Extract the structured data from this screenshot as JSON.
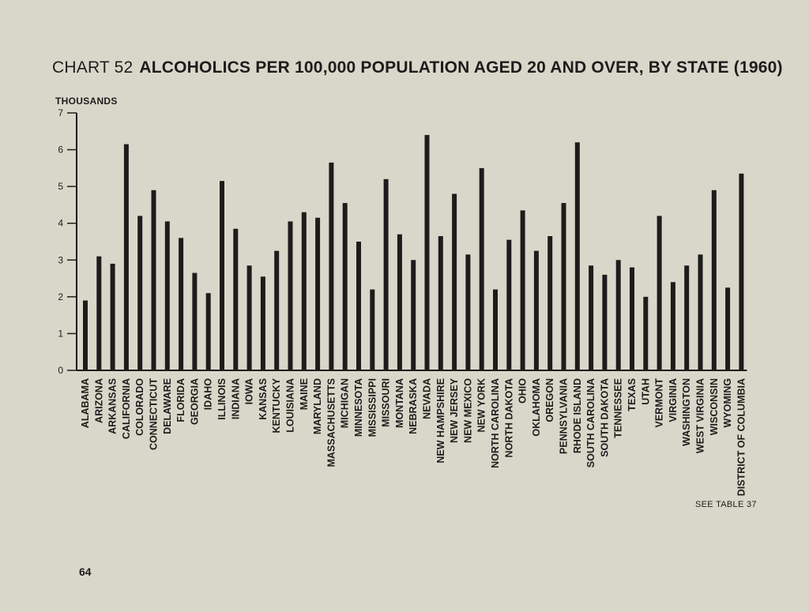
{
  "title_prefix": "CHART 52",
  "title": "ALCOHOLICS PER 100,000 POPULATION AGED 20 AND OVER, BY STATE (1960)",
  "source_note": "SEE TABLE 37",
  "page_number": "64",
  "chart_data": {
    "type": "bar",
    "title": "ALCOHOLICS PER 100,000 POPULATION AGED 20 AND OVER, BY STATE (1960)",
    "ylabel": "THOUSANDS",
    "xlabel": "",
    "ylim": [
      0,
      7
    ],
    "yticks": [
      0,
      1,
      2,
      3,
      4,
      5,
      6,
      7
    ],
    "grid": false,
    "bar_color": "#1c1c1c",
    "categories": [
      "ALABAMA",
      "ARIZONA",
      "ARKANSAS",
      "CALIFORNIA",
      "COLORADO",
      "CONNECTICUT",
      "DELAWARE",
      "FLORIDA",
      "GEORGIA",
      "IDAHO",
      "ILLINOIS",
      "INDIANA",
      "IOWA",
      "KANSAS",
      "KENTUCKY",
      "LOUISIANA",
      "MAINE",
      "MARYLAND",
      "MASSACHUSETTS",
      "MICHIGAN",
      "MINNESOTA",
      "MISSISSIPPI",
      "MISSOURI",
      "MONTANA",
      "NEBRASKA",
      "NEVADA",
      "NEW HAMPSHIRE",
      "NEW JERSEY",
      "NEW MEXICO",
      "NEW YORK",
      "NORTH CAROLINA",
      "NORTH DAKOTA",
      "OHIO",
      "OKLAHOMA",
      "OREGON",
      "PENNSYLVANIA",
      "RHODE ISLAND",
      "SOUTH CAROLINA",
      "SOUTH DAKOTA",
      "TENNESSEE",
      "TEXAS",
      "UTAH",
      "VERMONT",
      "VIRGINIA",
      "WASHINGTON",
      "WEST VIRGINIA",
      "WISCONSIN",
      "WYOMING",
      "DISTRICT OF COLUMBIA"
    ],
    "values": [
      1.9,
      3.1,
      2.9,
      6.15,
      4.2,
      4.9,
      4.05,
      3.6,
      2.65,
      2.1,
      5.15,
      3.85,
      2.85,
      2.55,
      3.25,
      4.05,
      4.3,
      4.15,
      5.65,
      4.55,
      3.5,
      2.2,
      5.2,
      3.7,
      3.0,
      6.4,
      3.65,
      4.8,
      3.15,
      5.5,
      2.2,
      3.55,
      4.35,
      3.25,
      3.65,
      4.55,
      6.2,
      2.85,
      2.6,
      3.0,
      2.8,
      2.0,
      4.2,
      2.4,
      2.85,
      3.15,
      4.9,
      2.25,
      5.35
    ]
  }
}
